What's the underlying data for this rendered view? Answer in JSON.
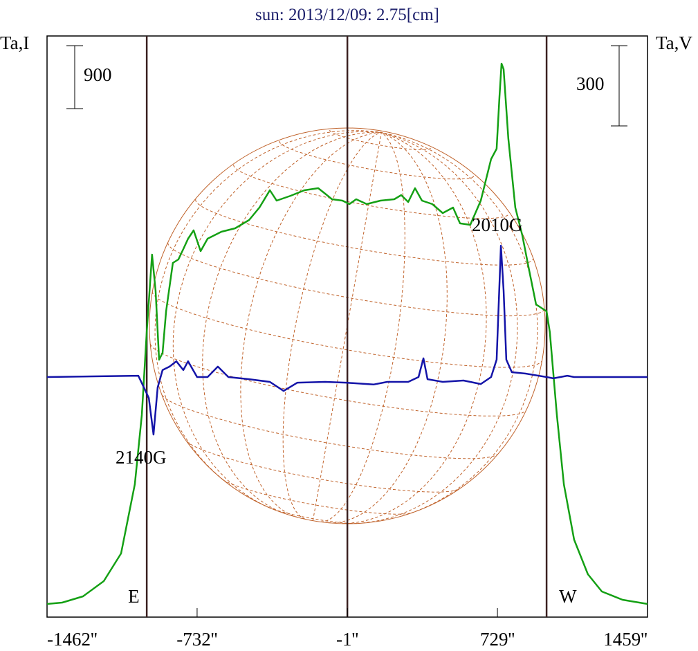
{
  "chart_data": {
    "type": "line",
    "title": "sun: 2013/12/09: 2.75[cm]",
    "ylabel_left": "Ta,I",
    "ylabel_right": "Ta,V",
    "xlim": [
      -1462,
      1459
    ],
    "x_ticks": [
      "-1462''",
      "-732''",
      "-1''",
      "729''",
      "1459''"
    ],
    "x_tick_values": [
      -1462,
      -732,
      -1,
      729,
      1459
    ],
    "limb_markers": [
      {
        "label": "E",
        "x": -977
      },
      {
        "label": "W",
        "x": 968
      }
    ],
    "center_marker": -1,
    "scale_bars": [
      {
        "label": "900",
        "series": "I",
        "value": 900
      },
      {
        "label": "300",
        "series": "V",
        "value": 300
      }
    ],
    "annotations": [
      {
        "text": "2010G",
        "x": 740
      },
      {
        "text": "2140G",
        "x": -944
      }
    ],
    "series": [
      {
        "name": "I",
        "color": "#14a014",
        "ylim": [
          0,
          8300
        ],
        "x": [
          -1462,
          -1388,
          -1287,
          -1186,
          -1102,
          -1035,
          -1001,
          -977,
          -951,
          -934,
          -917,
          -900,
          -883,
          -850,
          -823,
          -799,
          -776,
          -749,
          -715,
          -681,
          -614,
          -547,
          -479,
          -429,
          -378,
          -345,
          -277,
          -210,
          -143,
          -109,
          -76,
          -25,
          9,
          42,
          93,
          160,
          227,
          261,
          295,
          328,
          362,
          412,
          463,
          513,
          547,
          597,
          648,
          698,
          725,
          739,
          749,
          759,
          782,
          816,
          850,
          883,
          917,
          968,
          984,
          1018,
          1052,
          1102,
          1169,
          1237,
          1338,
          1459
        ],
        "y": [
          0,
          20,
          109,
          326,
          722,
          1711,
          2700,
          3887,
          4994,
          4480,
          3491,
          3590,
          4183,
          4876,
          4925,
          5074,
          5222,
          5341,
          5044,
          5222,
          5321,
          5370,
          5489,
          5667,
          5914,
          5766,
          5835,
          5914,
          5944,
          5865,
          5786,
          5766,
          5716,
          5786,
          5716,
          5766,
          5786,
          5845,
          5746,
          5944,
          5766,
          5716,
          5588,
          5667,
          5440,
          5420,
          5766,
          6359,
          6508,
          7249,
          7724,
          7645,
          6656,
          5667,
          5271,
          4777,
          4282,
          4183,
          3887,
          2700,
          1711,
          920,
          425,
          178,
          59,
          0
        ]
      },
      {
        "name": "V",
        "color": "#1414a8",
        "ylim": [
          -849,
          1323
        ],
        "x": [
          -1462,
          -1018,
          -991,
          -967,
          -944,
          -924,
          -900,
          -866,
          -833,
          -799,
          -776,
          -732,
          -681,
          -631,
          -580,
          -479,
          -378,
          -311,
          -244,
          -109,
          -8,
          126,
          193,
          295,
          345,
          369,
          389,
          463,
          564,
          648,
          698,
          725,
          746,
          759,
          772,
          799,
          866,
          968,
          1001,
          1035,
          1069,
          1102,
          1459
        ],
        "y": [
          0,
          5,
          -39,
          -78,
          -215,
          -39,
          26,
          39,
          59,
          26,
          59,
          0,
          0,
          39,
          0,
          -8,
          -18,
          -52,
          -21,
          -18,
          -21,
          -28,
          -18,
          -18,
          0,
          70,
          -8,
          -18,
          -13,
          -26,
          0,
          65,
          491,
          323,
          65,
          18,
          13,
          0,
          -5,
          0,
          5,
          0,
          0
        ]
      }
    ]
  }
}
